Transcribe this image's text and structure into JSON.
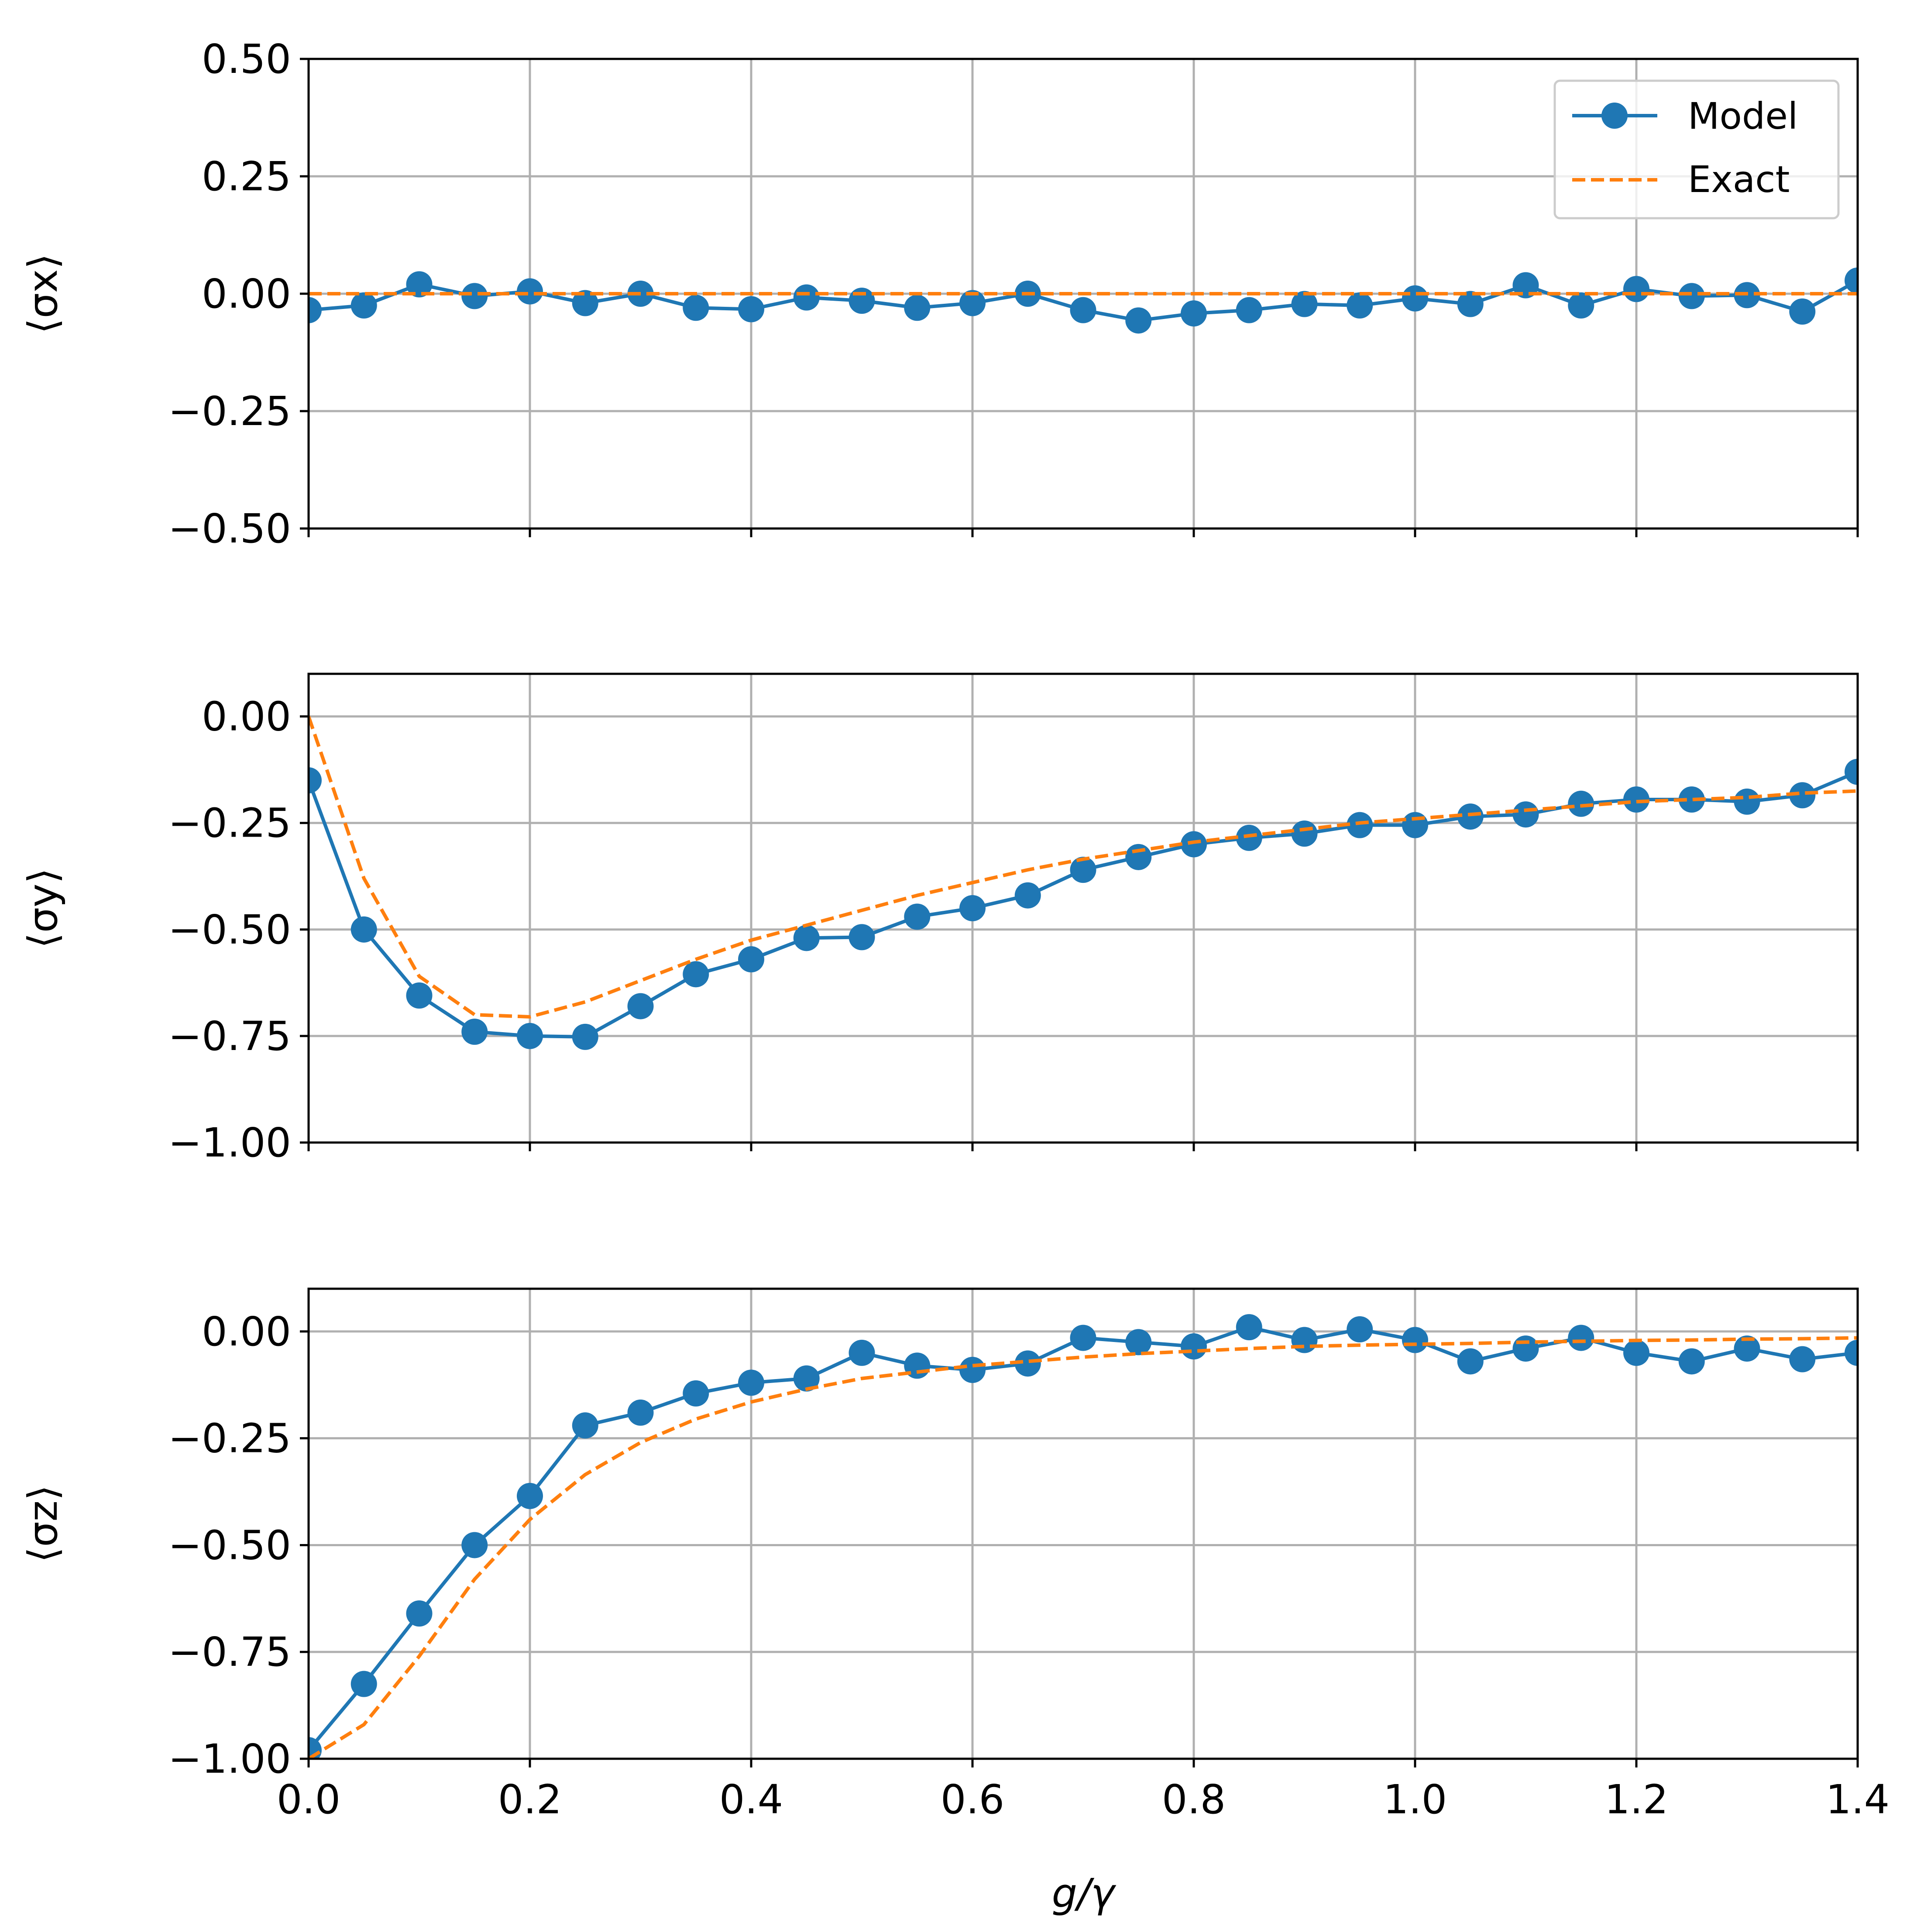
{
  "chart_data": [
    {
      "type": "line",
      "ylabel": "⟨σx⟩",
      "ylim": [
        -0.5,
        0.5
      ],
      "xlim": [
        0.0,
        1.4
      ],
      "yticks": [
        "0.50",
        "0.25",
        "0.00",
        "−0.25",
        "−0.50"
      ],
      "ytick_values": [
        0.5,
        0.25,
        0.0,
        -0.25,
        -0.5
      ],
      "xticks_shown": false,
      "grid": true,
      "legend": {
        "position": "top-right",
        "entries": [
          "Model",
          "Exact"
        ]
      },
      "series": [
        {
          "name": "Model",
          "style": "solid-with-markers",
          "x": [
            0.0,
            0.05,
            0.1,
            0.15,
            0.2,
            0.25,
            0.3,
            0.35,
            0.4,
            0.45,
            0.5,
            0.55,
            0.6,
            0.65,
            0.7,
            0.75,
            0.8,
            0.85,
            0.9,
            0.95,
            1.0,
            1.05,
            1.1,
            1.15,
            1.2,
            1.25,
            1.3,
            1.35,
            1.4
          ],
          "y": [
            -0.035,
            -0.025,
            0.02,
            -0.005,
            0.005,
            -0.02,
            0.0,
            -0.03,
            -0.033,
            -0.008,
            -0.015,
            -0.03,
            -0.02,
            0.0,
            -0.035,
            -0.057,
            -0.042,
            -0.035,
            -0.022,
            -0.025,
            -0.01,
            -0.022,
            0.018,
            -0.025,
            0.01,
            -0.005,
            -0.003,
            -0.038,
            0.028
          ]
        },
        {
          "name": "Exact",
          "style": "dashed",
          "x": [
            0.0,
            1.4
          ],
          "y": [
            0.0,
            0.0
          ]
        }
      ]
    },
    {
      "type": "line",
      "ylabel": "⟨σy⟩",
      "ylim": [
        -1.0,
        0.1
      ],
      "xlim": [
        0.0,
        1.4
      ],
      "yticks": [
        "0.00",
        "−0.25",
        "−0.50",
        "−0.75",
        "−1.00"
      ],
      "ytick_values": [
        0.0,
        -0.25,
        -0.5,
        -0.75,
        -1.0
      ],
      "xticks_shown": false,
      "grid": true,
      "series": [
        {
          "name": "Model",
          "style": "solid-with-markers",
          "x": [
            0.0,
            0.05,
            0.1,
            0.15,
            0.2,
            0.25,
            0.3,
            0.35,
            0.4,
            0.45,
            0.5,
            0.55,
            0.6,
            0.65,
            0.7,
            0.75,
            0.8,
            0.85,
            0.9,
            0.95,
            1.0,
            1.05,
            1.1,
            1.15,
            1.2,
            1.25,
            1.3,
            1.35,
            1.4
          ],
          "y": [
            -0.15,
            -0.5,
            -0.655,
            -0.74,
            -0.75,
            -0.752,
            -0.68,
            -0.605,
            -0.57,
            -0.52,
            -0.518,
            -0.47,
            -0.45,
            -0.42,
            -0.36,
            -0.33,
            -0.3,
            -0.285,
            -0.275,
            -0.255,
            -0.255,
            -0.235,
            -0.23,
            -0.205,
            -0.195,
            -0.195,
            -0.2,
            -0.185,
            -0.13
          ]
        },
        {
          "name": "Exact",
          "style": "dashed",
          "x": [
            0.0,
            0.05,
            0.1,
            0.15,
            0.2,
            0.25,
            0.3,
            0.35,
            0.4,
            0.45,
            0.5,
            0.55,
            0.6,
            0.65,
            0.7,
            0.75,
            0.8,
            0.85,
            0.9,
            0.95,
            1.0,
            1.05,
            1.1,
            1.15,
            1.2,
            1.25,
            1.3,
            1.35,
            1.4
          ],
          "y": [
            0.0,
            -0.38,
            -0.61,
            -0.7,
            -0.705,
            -0.67,
            -0.62,
            -0.57,
            -0.525,
            -0.49,
            -0.455,
            -0.42,
            -0.39,
            -0.36,
            -0.335,
            -0.315,
            -0.295,
            -0.28,
            -0.265,
            -0.25,
            -0.24,
            -0.23,
            -0.22,
            -0.21,
            -0.2,
            -0.195,
            -0.19,
            -0.18,
            -0.175
          ]
        }
      ]
    },
    {
      "type": "line",
      "ylabel": "⟨σz⟩",
      "xlabel": "g/γ",
      "ylim": [
        -1.0,
        0.1
      ],
      "xlim": [
        0.0,
        1.4
      ],
      "yticks": [
        "0.00",
        "−0.25",
        "−0.50",
        "−0.75",
        "−1.00"
      ],
      "ytick_values": [
        0.0,
        -0.25,
        -0.5,
        -0.75,
        -1.0
      ],
      "xticks": [
        "0.0",
        "0.2",
        "0.4",
        "0.6",
        "0.8",
        "1.0",
        "1.2",
        "1.4"
      ],
      "xtick_values": [
        0.0,
        0.2,
        0.4,
        0.6,
        0.8,
        1.0,
        1.2,
        1.4
      ],
      "xticks_shown": true,
      "grid": true,
      "series": [
        {
          "name": "Model",
          "style": "solid-with-markers",
          "x": [
            0.0,
            0.05,
            0.1,
            0.15,
            0.2,
            0.25,
            0.3,
            0.35,
            0.4,
            0.45,
            0.5,
            0.55,
            0.6,
            0.65,
            0.7,
            0.75,
            0.8,
            0.85,
            0.9,
            0.95,
            1.0,
            1.05,
            1.1,
            1.15,
            1.2,
            1.25,
            1.3,
            1.35,
            1.4
          ],
          "y": [
            -0.98,
            -0.825,
            -0.66,
            -0.5,
            -0.385,
            -0.22,
            -0.19,
            -0.145,
            -0.12,
            -0.11,
            -0.05,
            -0.08,
            -0.09,
            -0.075,
            -0.015,
            -0.025,
            -0.035,
            0.01,
            -0.02,
            0.005,
            -0.02,
            -0.07,
            -0.04,
            -0.015,
            -0.05,
            -0.07,
            -0.04,
            -0.065,
            -0.05
          ]
        },
        {
          "name": "Exact",
          "style": "dashed",
          "x": [
            0.0,
            0.05,
            0.1,
            0.15,
            0.2,
            0.25,
            0.3,
            0.35,
            0.4,
            0.45,
            0.5,
            0.55,
            0.6,
            0.65,
            0.7,
            0.75,
            0.8,
            0.85,
            0.9,
            0.95,
            1.0,
            1.05,
            1.1,
            1.15,
            1.2,
            1.25,
            1.3,
            1.35,
            1.4
          ],
          "y": [
            -1.0,
            -0.92,
            -0.76,
            -0.58,
            -0.44,
            -0.335,
            -0.26,
            -0.205,
            -0.165,
            -0.135,
            -0.11,
            -0.095,
            -0.08,
            -0.07,
            -0.06,
            -0.052,
            -0.046,
            -0.04,
            -0.035,
            -0.032,
            -0.03,
            -0.028,
            -0.025,
            -0.023,
            -0.021,
            -0.02,
            -0.018,
            -0.017,
            -0.015
          ]
        }
      ]
    }
  ],
  "colors": {
    "model": "#1f77b4",
    "exact": "#ff7f0e",
    "grid": "#b0b0b0",
    "axes": "#000000"
  }
}
